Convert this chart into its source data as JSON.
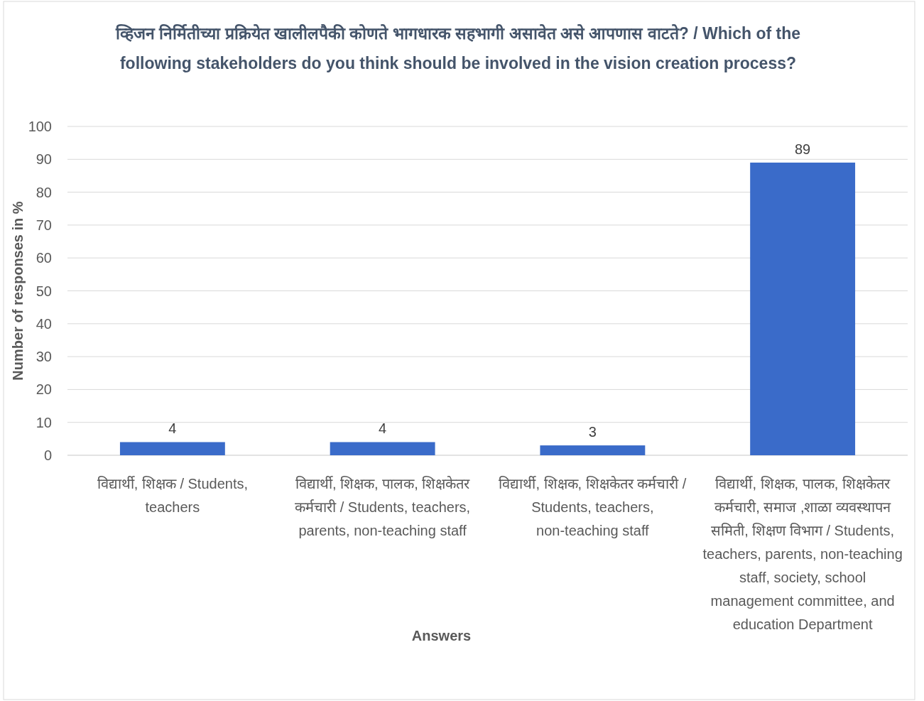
{
  "chart_data": {
    "type": "bar",
    "title": "व्हिजन निर्मितीच्या प्रक्रियेत खालीलपैकी कोणते भागधारक सहभागी असावेत असे आपणास वाटते?  /  Which of the following stakeholders do you think should be involved in the vision creation process?",
    "xlabel": "Answers",
    "ylabel": "Number of responses in %",
    "categories": [
      "विद्यार्थी, शिक्षक / Students, teachers",
      "विद्यार्थी, शिक्षक, पालक, शिक्षकेतर कर्मचारी / Students, teachers, parents, non-teaching staff",
      "विद्यार्थी, शिक्षक, शिक्षकेतर कर्मचारी / Students, teachers, non-teaching staff",
      "विद्यार्थी, शिक्षक, पालक, शिक्षकेतर कर्मचारी, समाज ,शाळा व्यवस्थापन समिती, शिक्षण विभाग / Students, teachers, parents, non-teaching staff, society, school management committee, and education Department"
    ],
    "values": [
      4,
      4,
      3,
      89
    ],
    "color": "#3a6bc9",
    "data_labels": true,
    "ylim": [
      0,
      100
    ],
    "yticks": [
      0,
      10,
      20,
      30,
      40,
      50,
      60,
      70,
      80,
      90,
      100
    ],
    "grid": "y"
  }
}
